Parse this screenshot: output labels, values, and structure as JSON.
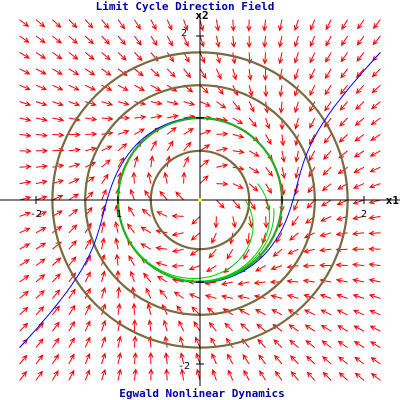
{
  "chart_data": {
    "type": "direction-field",
    "title": "Limit Cycle Direction Field",
    "footer": "Egwald Nonlinear Dynamics",
    "xlabel": "x1",
    "ylabel": "x2",
    "xlim": [
      -2.4,
      2.4
    ],
    "ylim": [
      -2.4,
      2.4
    ],
    "x_ticks": [
      "-2",
      "1",
      "2"
    ],
    "y_ticks": [
      "2",
      "-2"
    ],
    "field_grid_step": 0.2,
    "reference_circles_r": [
      0.6,
      1.0,
      1.4,
      1.8
    ],
    "equilibrium": [
      0,
      0
    ],
    "blue_trajectory_starts": [
      [
        2.2,
        1.8
      ],
      [
        -2.2,
        -1.8
      ]
    ],
    "green_trajectory_starts": [
      [
        0.55,
        0
      ],
      [
        0.7,
        0.2
      ],
      [
        0.9,
        -0.1
      ]
    ],
    "colors": {
      "title": "#0000aa",
      "axes": "#000000",
      "arrows": "#ff0000",
      "circles": "#7a6a40",
      "trajectory_outer": "#0000ff",
      "trajectory_inner": "#00cc00",
      "equilibrium": "#ffff00"
    }
  }
}
